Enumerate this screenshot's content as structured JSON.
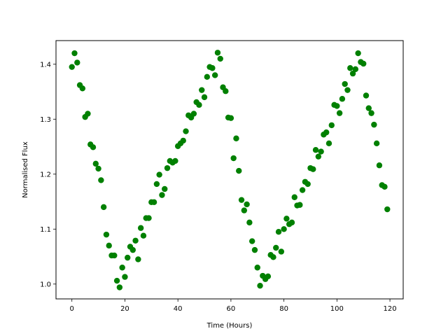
{
  "chart_data": {
    "type": "scatter",
    "title": "",
    "xlabel": "Time (Hours)",
    "ylabel": "Normalised Flux",
    "xlim": [
      -6,
      125
    ],
    "ylim": [
      0.973,
      1.443
    ],
    "xticks": [
      0,
      20,
      40,
      60,
      80,
      100,
      120
    ],
    "yticks": [
      1.0,
      1.1,
      1.2,
      1.3,
      1.4
    ],
    "xtick_labels": [
      "0",
      "20",
      "40",
      "60",
      "80",
      "100",
      "120"
    ],
    "ytick_labels": [
      "1.0",
      "1.1",
      "1.2",
      "1.3",
      "1.4"
    ],
    "grid": false,
    "legend": "none",
    "marker_color": "#008000",
    "series": [
      {
        "x": [
          0,
          1,
          2,
          3,
          4,
          5,
          6,
          7,
          8,
          9,
          10,
          11,
          12,
          13,
          14,
          15,
          16,
          17,
          18,
          19,
          20,
          21,
          22,
          23,
          24,
          25,
          26,
          27,
          28,
          29,
          30,
          31,
          32,
          33,
          34,
          35,
          36,
          37,
          38,
          39,
          40,
          41,
          42,
          43,
          44,
          45,
          46,
          47,
          48,
          49,
          50,
          51,
          52,
          53,
          54,
          55,
          56,
          57,
          58,
          59,
          60,
          61,
          62,
          63,
          64,
          65,
          66,
          67,
          68,
          69,
          70,
          71,
          72,
          73,
          74,
          75,
          76,
          77,
          78,
          79,
          80,
          81,
          82,
          83,
          84,
          85,
          86,
          87,
          88,
          89,
          90,
          91,
          92,
          93,
          94,
          95,
          96,
          97,
          98,
          99,
          100,
          101,
          102,
          103,
          104,
          105,
          106,
          107,
          108,
          109,
          110,
          111,
          112,
          113,
          114,
          115,
          116,
          117,
          118,
          119
        ],
        "y": [
          1.395,
          1.42,
          1.403,
          1.362,
          1.356,
          1.304,
          1.31,
          1.254,
          1.249,
          1.219,
          1.21,
          1.189,
          1.14,
          1.09,
          1.07,
          1.052,
          1.052,
          1.006,
          0.994,
          1.03,
          1.013,
          1.048,
          1.068,
          1.062,
          1.079,
          1.045,
          1.102,
          1.088,
          1.12,
          1.12,
          1.149,
          1.149,
          1.182,
          1.199,
          1.162,
          1.173,
          1.211,
          1.224,
          1.221,
          1.224,
          1.251,
          1.256,
          1.261,
          1.278,
          1.307,
          1.303,
          1.31,
          1.331,
          1.326,
          1.353,
          1.34,
          1.377,
          1.395,
          1.393,
          1.38,
          1.421,
          1.41,
          1.358,
          1.351,
          1.303,
          1.302,
          1.229,
          1.265,
          1.206,
          1.153,
          1.134,
          1.145,
          1.112,
          1.078,
          1.062,
          1.03,
          0.997,
          1.015,
          1.009,
          1.014,
          1.053,
          1.049,
          1.066,
          1.095,
          1.059,
          1.1,
          1.119,
          1.109,
          1.112,
          1.158,
          1.143,
          1.144,
          1.171,
          1.186,
          1.182,
          1.211,
          1.209,
          1.244,
          1.232,
          1.241,
          1.272,
          1.276,
          1.256,
          1.289,
          1.326,
          1.324,
          1.311,
          1.337,
          1.364,
          1.353,
          1.393,
          1.383,
          1.391,
          1.42,
          1.404,
          1.401,
          1.343,
          1.32,
          1.311,
          1.29,
          1.256,
          1.216,
          1.18,
          1.177,
          1.136
        ]
      }
    ]
  }
}
